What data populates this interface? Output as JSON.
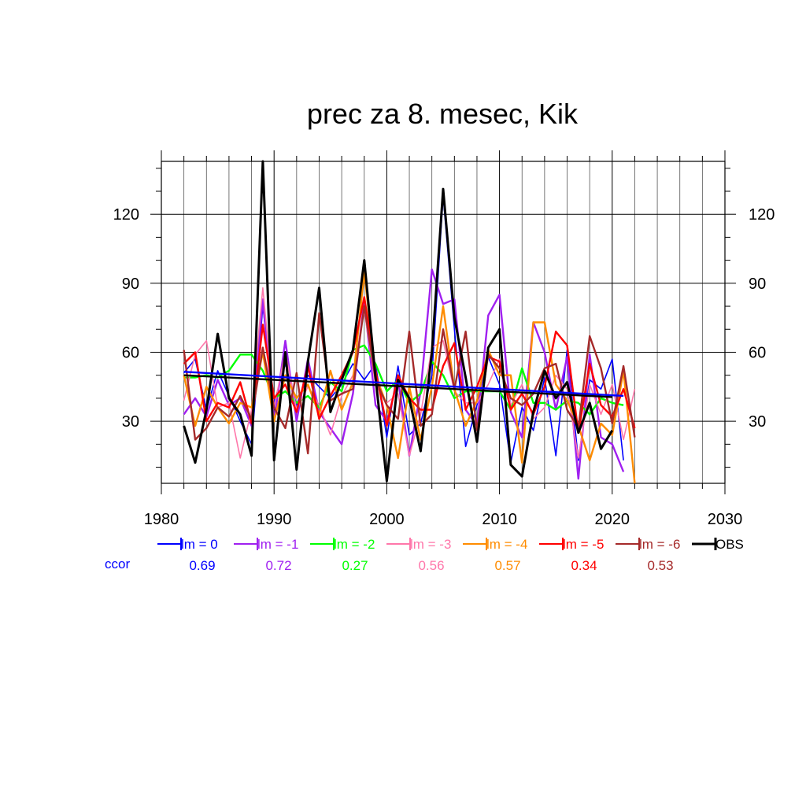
{
  "chart_data": {
    "type": "line",
    "title": "prec za 8. mesec, Kik",
    "xlabel": "",
    "ylabel": "",
    "xlim": [
      1980,
      2030
    ],
    "ylim": [
      3,
      143
    ],
    "xticks": [
      "1980",
      "1990",
      "2000",
      "2010",
      "2020",
      "2030"
    ],
    "yticks": [
      "30",
      "60",
      "90",
      "120"
    ],
    "grid": true,
    "legend_position": "bottom",
    "ccor_label": "ccor",
    "series": [
      {
        "name": "lm = 0",
        "color": "#0000ff",
        "ccor": "0.69",
        "x": [
          1982,
          1983,
          1984,
          1985,
          1986,
          1987,
          1988,
          1989,
          1990,
          1991,
          1992,
          1993,
          1994,
          1995,
          1996,
          1997,
          1998,
          1999,
          2000,
          2001,
          2002,
          2003,
          2004,
          2005,
          2006,
          2007,
          2008,
          2009,
          2010,
          2011,
          2012,
          2013,
          2014,
          2015,
          2016,
          2017,
          2018,
          2019,
          2020,
          2021
        ],
        "y": [
          51,
          57,
          35,
          52,
          41,
          30,
          20,
          80,
          38,
          55,
          37,
          50,
          45,
          40,
          46,
          55,
          48,
          55,
          23,
          54,
          24,
          29,
          50,
          128,
          70,
          19,
          37,
          58,
          46,
          12,
          36,
          26,
          49,
          15,
          61,
          13,
          48,
          44,
          57,
          13
        ]
      },
      {
        "name": "lm = -1",
        "color": "#a020f0",
        "ccor": "0.72",
        "x": [
          1982,
          1983,
          1984,
          1985,
          1986,
          1987,
          1988,
          1989,
          1990,
          1991,
          1992,
          1993,
          1994,
          1995,
          1996,
          1997,
          1998,
          1999,
          2000,
          2001,
          2002,
          2003,
          2004,
          2005,
          2006,
          2007,
          2008,
          2009,
          2010,
          2011,
          2012,
          2013,
          2014,
          2015,
          2016,
          2017,
          2018,
          2019,
          2020,
          2021
        ],
        "y": [
          33,
          40,
          32,
          48,
          37,
          40,
          28,
          83,
          30,
          65,
          30,
          57,
          34,
          27,
          20,
          42,
          82,
          37,
          30,
          48,
          15,
          43,
          96,
          81,
          83,
          35,
          28,
          76,
          85,
          34,
          23,
          73,
          60,
          35,
          58,
          5,
          59,
          23,
          20,
          8
        ]
      },
      {
        "name": "lm = -2",
        "color": "#00ff00",
        "ccor": "0.27",
        "x": [
          1982,
          1983,
          1984,
          1985,
          1986,
          1987,
          1988,
          1989,
          1990,
          1991,
          1992,
          1993,
          1994,
          1995,
          1996,
          1997,
          1998,
          1999,
          2000,
          2001,
          2002,
          2003,
          2004,
          2005,
          2006,
          2007,
          2008,
          2009,
          2010,
          2011,
          2012,
          2013,
          2014,
          2015,
          2016,
          2017,
          2018,
          2019,
          2020,
          2021
        ],
        "y": [
          49,
          49,
          50,
          49,
          52,
          59,
          59,
          52,
          40,
          43,
          38,
          41,
          36,
          47,
          43,
          61,
          63,
          55,
          43,
          48,
          38,
          42,
          56,
          50,
          40,
          43,
          43,
          43,
          43,
          35,
          53,
          38,
          38,
          35,
          39,
          38,
          33,
          40,
          38,
          37
        ]
      },
      {
        "name": "lm = -3",
        "color": "#ff77aa",
        "ccor": "0.56",
        "x": [
          1982,
          1983,
          1984,
          1985,
          1986,
          1987,
          1988,
          1989,
          1990,
          1991,
          1992,
          1993,
          1994,
          1995,
          1996,
          1997,
          1998,
          1999,
          2000,
          2001,
          2002,
          2003,
          2004,
          2005,
          2006,
          2007,
          2008,
          2009,
          2010,
          2011,
          2012,
          2013,
          2014,
          2015,
          2016,
          2017,
          2018,
          2019,
          2020,
          2021,
          2022
        ],
        "y": [
          39,
          59,
          65,
          36,
          38,
          14,
          35,
          88,
          36,
          60,
          35,
          45,
          37,
          24,
          41,
          50,
          78,
          46,
          38,
          42,
          15,
          33,
          62,
          65,
          43,
          38,
          38,
          46,
          57,
          37,
          46,
          31,
          36,
          50,
          44,
          14,
          46,
          33,
          46,
          22,
          44
        ]
      },
      {
        "name": "lm = -4",
        "color": "#ff8c00",
        "ccor": "0.57",
        "x": [
          1982,
          1983,
          1984,
          1985,
          1986,
          1987,
          1988,
          1989,
          1990,
          1991,
          1992,
          1993,
          1994,
          1995,
          1996,
          1997,
          1998,
          1999,
          2000,
          2001,
          2002,
          2003,
          2004,
          2005,
          2006,
          2007,
          2008,
          2009,
          2010,
          2011,
          2012,
          2013,
          2014,
          2015,
          2016,
          2017,
          2018,
          2019,
          2020,
          2021,
          2022
        ],
        "y": [
          50,
          28,
          45,
          36,
          29,
          38,
          36,
          60,
          30,
          50,
          40,
          46,
          33,
          52,
          35,
          47,
          95,
          50,
          37,
          14,
          45,
          22,
          45,
          80,
          44,
          28,
          39,
          61,
          50,
          50,
          12,
          73,
          73,
          46,
          39,
          28,
          13,
          29,
          24,
          52,
          3
        ]
      },
      {
        "name": "lm = -5",
        "color": "#ff0000",
        "ccor": "0.34",
        "x": [
          1982,
          1983,
          1984,
          1985,
          1986,
          1987,
          1988,
          1989,
          1990,
          1991,
          1992,
          1993,
          1994,
          1995,
          1996,
          1997,
          1998,
          1999,
          2000,
          2001,
          2002,
          2003,
          2004,
          2005,
          2006,
          2007,
          2008,
          2009,
          2010,
          2011,
          2012,
          2013,
          2014,
          2015,
          2016,
          2017,
          2018,
          2019,
          2020,
          2021,
          2022
        ],
        "y": [
          55,
          60,
          30,
          38,
          36,
          47,
          29,
          72,
          40,
          46,
          34,
          54,
          31,
          41,
          50,
          60,
          84,
          52,
          28,
          50,
          40,
          35,
          35,
          54,
          64,
          35,
          45,
          58,
          56,
          35,
          42,
          33,
          45,
          69,
          63,
          25,
          55,
          37,
          32,
          44,
          27
        ]
      },
      {
        "name": "lm = -6",
        "color": "#a52a2a",
        "ccor": "0.53",
        "x": [
          1982,
          1983,
          1984,
          1985,
          1986,
          1987,
          1988,
          1989,
          1990,
          1991,
          1992,
          1993,
          1994,
          1995,
          1996,
          1997,
          1998,
          1999,
          2000,
          2001,
          2002,
          2003,
          2004,
          2005,
          2006,
          2007,
          2008,
          2009,
          2010,
          2011,
          2012,
          2013,
          2014,
          2015,
          2016,
          2017,
          2018,
          2019,
          2020,
          2021,
          2022
        ],
        "y": [
          61,
          22,
          27,
          36,
          32,
          41,
          31,
          62,
          36,
          27,
          51,
          16,
          77,
          39,
          42,
          44,
          80,
          48,
          37,
          31,
          69,
          28,
          33,
          70,
          44,
          69,
          26,
          59,
          53,
          40,
          37,
          42,
          53,
          55,
          35,
          27,
          67,
          53,
          29,
          54,
          23
        ]
      },
      {
        "name": "OBS",
        "color": "#000000",
        "ccor": "",
        "x": [
          1982,
          1983,
          1984,
          1985,
          1986,
          1987,
          1988,
          1989,
          1990,
          1991,
          1992,
          1993,
          1994,
          1995,
          1996,
          1997,
          1998,
          1999,
          2000,
          2001,
          2002,
          2003,
          2004,
          2005,
          2006,
          2007,
          2008,
          2009,
          2010,
          2011,
          2012,
          2013,
          2014,
          2015,
          2016,
          2017,
          2018,
          2019,
          2020
        ],
        "y": [
          28,
          12,
          35,
          68,
          40,
          33,
          15,
          143,
          13,
          60,
          9,
          56,
          88,
          34,
          48,
          61,
          100,
          49,
          4,
          48,
          40,
          17,
          60,
          131,
          75,
          49,
          21,
          62,
          70,
          11,
          6,
          34,
          52,
          40,
          47,
          25,
          38,
          18,
          26
        ]
      }
    ],
    "trend_lines": [
      {
        "name": "lm = 0 trend",
        "color": "#0000ff",
        "x": [
          1982,
          2021
        ],
        "y": [
          51.5,
          41.0
        ]
      },
      {
        "name": "OBS trend",
        "color": "#000000",
        "x": [
          1982,
          2020
        ],
        "y": [
          50.0,
          40.5
        ]
      }
    ]
  }
}
